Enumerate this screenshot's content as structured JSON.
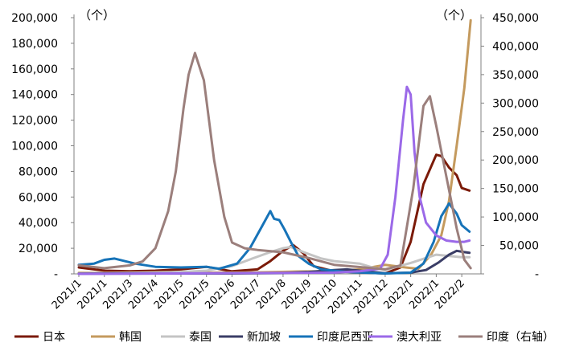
{
  "chart_data": {
    "type": "line",
    "title": "",
    "left_unit": "（个）",
    "right_unit": "（个）",
    "y_left": {
      "min": 0,
      "max": 200000,
      "step": 20000,
      "ticks": [
        "-",
        "20,000",
        "40,000",
        "60,000",
        "80,000",
        "100,000",
        "120,000",
        "140,000",
        "160,000",
        "180,000",
        "200,000"
      ]
    },
    "y_right": {
      "min": 0,
      "max": 450000,
      "step": 50000,
      "ticks": [
        "-",
        "50,000",
        "100,000",
        "150,000",
        "200,000",
        "250,000",
        "300,000",
        "350,000",
        "400,000",
        "450,000"
      ]
    },
    "x_labels": [
      "2021/1",
      "2021/1",
      "2021/3",
      "2021/4",
      "2021/5",
      "2021/5",
      "2021/6",
      "2021/7",
      "2021/8",
      "2021/9",
      "2021/10",
      "2021/11",
      "2021/12",
      "2022/1",
      "2022/1",
      "2022/2"
    ],
    "x_range": [
      0,
      15.5
    ],
    "grid": false,
    "legend_position": "bottom",
    "series": [
      {
        "name": "日本",
        "axis": "left",
        "color": "#7b1a08",
        "points": [
          [
            0,
            5000
          ],
          [
            1,
            2500
          ],
          [
            2,
            2000
          ],
          [
            3,
            2500
          ],
          [
            4,
            3500
          ],
          [
            5,
            5500
          ],
          [
            6,
            2000
          ],
          [
            7,
            3500
          ],
          [
            7.5,
            10000
          ],
          [
            8,
            18000
          ],
          [
            8.4,
            22500
          ],
          [
            8.8,
            16000
          ],
          [
            9.2,
            6000
          ],
          [
            10,
            2000
          ],
          [
            12,
            300
          ],
          [
            12.6,
            5000
          ],
          [
            13,
            25000
          ],
          [
            13.5,
            70000
          ],
          [
            14,
            93000
          ],
          [
            14.2,
            92000
          ],
          [
            14.5,
            83000
          ],
          [
            14.8,
            77000
          ],
          [
            15,
            67000
          ],
          [
            15.3,
            65000
          ]
        ]
      },
      {
        "name": "韩国",
        "axis": "left",
        "color": "#c49a5e",
        "points": [
          [
            0,
            800
          ],
          [
            4,
            700
          ],
          [
            7,
            1200
          ],
          [
            8.5,
            1800
          ],
          [
            10,
            2000
          ],
          [
            11,
            3500
          ],
          [
            12,
            7000
          ],
          [
            12.8,
            5000
          ],
          [
            13.3,
            4000
          ],
          [
            13.8,
            15000
          ],
          [
            14.2,
            30000
          ],
          [
            14.5,
            57000
          ],
          [
            14.8,
            100000
          ],
          [
            15.1,
            145000
          ],
          [
            15.35,
            198000
          ]
        ]
      },
      {
        "name": "泰国",
        "axis": "left",
        "color": "#c4c4c4",
        "points": [
          [
            0,
            300
          ],
          [
            4,
            1500
          ],
          [
            5,
            2500
          ],
          [
            6,
            6000
          ],
          [
            6.8,
            12000
          ],
          [
            7.5,
            17000
          ],
          [
            8,
            20000
          ],
          [
            8.3,
            21000
          ],
          [
            8.8,
            17000
          ],
          [
            9.5,
            12000
          ],
          [
            10,
            10000
          ],
          [
            11,
            8000
          ],
          [
            11.5,
            5000
          ],
          [
            12,
            3000
          ],
          [
            13,
            8500
          ],
          [
            14,
            15000
          ],
          [
            15,
            13000
          ],
          [
            15.3,
            13000
          ]
        ]
      },
      {
        "name": "新加坡",
        "axis": "left",
        "color": "#3a3d66",
        "points": [
          [
            0,
            200
          ],
          [
            6,
            300
          ],
          [
            8,
            600
          ],
          [
            9,
            1500
          ],
          [
            10,
            3000
          ],
          [
            10.5,
            3500
          ],
          [
            11,
            2500
          ],
          [
            12,
            500
          ],
          [
            13,
            1000
          ],
          [
            13.6,
            3000
          ],
          [
            14.1,
            9000
          ],
          [
            14.5,
            15000
          ],
          [
            14.8,
            18000
          ],
          [
            15.1,
            17000
          ],
          [
            15.3,
            16500
          ]
        ]
      },
      {
        "name": "印度尼西亚",
        "axis": "left",
        "color": "#1673b8",
        "points": [
          [
            0,
            7000
          ],
          [
            0.6,
            8000
          ],
          [
            1,
            11000
          ],
          [
            1.4,
            12000
          ],
          [
            1.8,
            10000
          ],
          [
            2.2,
            8000
          ],
          [
            3,
            5500
          ],
          [
            4,
            5000
          ],
          [
            5,
            5500
          ],
          [
            5.5,
            4000
          ],
          [
            6.2,
            8000
          ],
          [
            6.7,
            20000
          ],
          [
            7.2,
            38000
          ],
          [
            7.5,
            49000
          ],
          [
            7.65,
            43000
          ],
          [
            7.85,
            42000
          ],
          [
            8.05,
            35000
          ],
          [
            8.3,
            25000
          ],
          [
            8.6,
            14000
          ],
          [
            9,
            8000
          ],
          [
            9.5,
            3500
          ],
          [
            10.5,
            1500
          ],
          [
            12,
            300
          ],
          [
            13,
            1000
          ],
          [
            13.5,
            8000
          ],
          [
            13.9,
            25000
          ],
          [
            14.2,
            45000
          ],
          [
            14.5,
            55000
          ],
          [
            14.8,
            47000
          ],
          [
            15,
            38000
          ],
          [
            15.3,
            33000
          ]
        ]
      },
      {
        "name": "澳大利亚",
        "axis": "left",
        "color": "#9b69e8",
        "points": [
          [
            0,
            0
          ],
          [
            10,
            1000
          ],
          [
            11,
            2000
          ],
          [
            11.8,
            4000
          ],
          [
            12.1,
            15000
          ],
          [
            12.4,
            60000
          ],
          [
            12.7,
            120000
          ],
          [
            12.85,
            146000
          ],
          [
            13.0,
            140000
          ],
          [
            13.15,
            95000
          ],
          [
            13.35,
            60000
          ],
          [
            13.6,
            40000
          ],
          [
            14.0,
            30000
          ],
          [
            14.4,
            26000
          ],
          [
            14.8,
            25000
          ],
          [
            15.1,
            25000
          ],
          [
            15.3,
            26000
          ]
        ]
      },
      {
        "name": "印度（右轴）",
        "axis": "right",
        "color": "#9b7f7c",
        "points": [
          [
            0,
            15000
          ],
          [
            1,
            10000
          ],
          [
            2,
            15000
          ],
          [
            2.5,
            22000
          ],
          [
            3,
            45000
          ],
          [
            3.5,
            110000
          ],
          [
            3.8,
            180000
          ],
          [
            4.1,
            290000
          ],
          [
            4.3,
            350000
          ],
          [
            4.55,
            388000
          ],
          [
            4.9,
            340000
          ],
          [
            5.3,
            200000
          ],
          [
            5.7,
            100000
          ],
          [
            6,
            55000
          ],
          [
            6.5,
            45000
          ],
          [
            7,
            42000
          ],
          [
            8,
            38000
          ],
          [
            9,
            28000
          ],
          [
            10,
            16000
          ],
          [
            11,
            12000
          ],
          [
            12,
            8000
          ],
          [
            12.6,
            15000
          ],
          [
            13.1,
            150000
          ],
          [
            13.5,
            295000
          ],
          [
            13.75,
            312000
          ],
          [
            14.0,
            260000
          ],
          [
            14.4,
            170000
          ],
          [
            14.8,
            80000
          ],
          [
            15.1,
            25000
          ],
          [
            15.35,
            10000
          ]
        ]
      }
    ]
  }
}
